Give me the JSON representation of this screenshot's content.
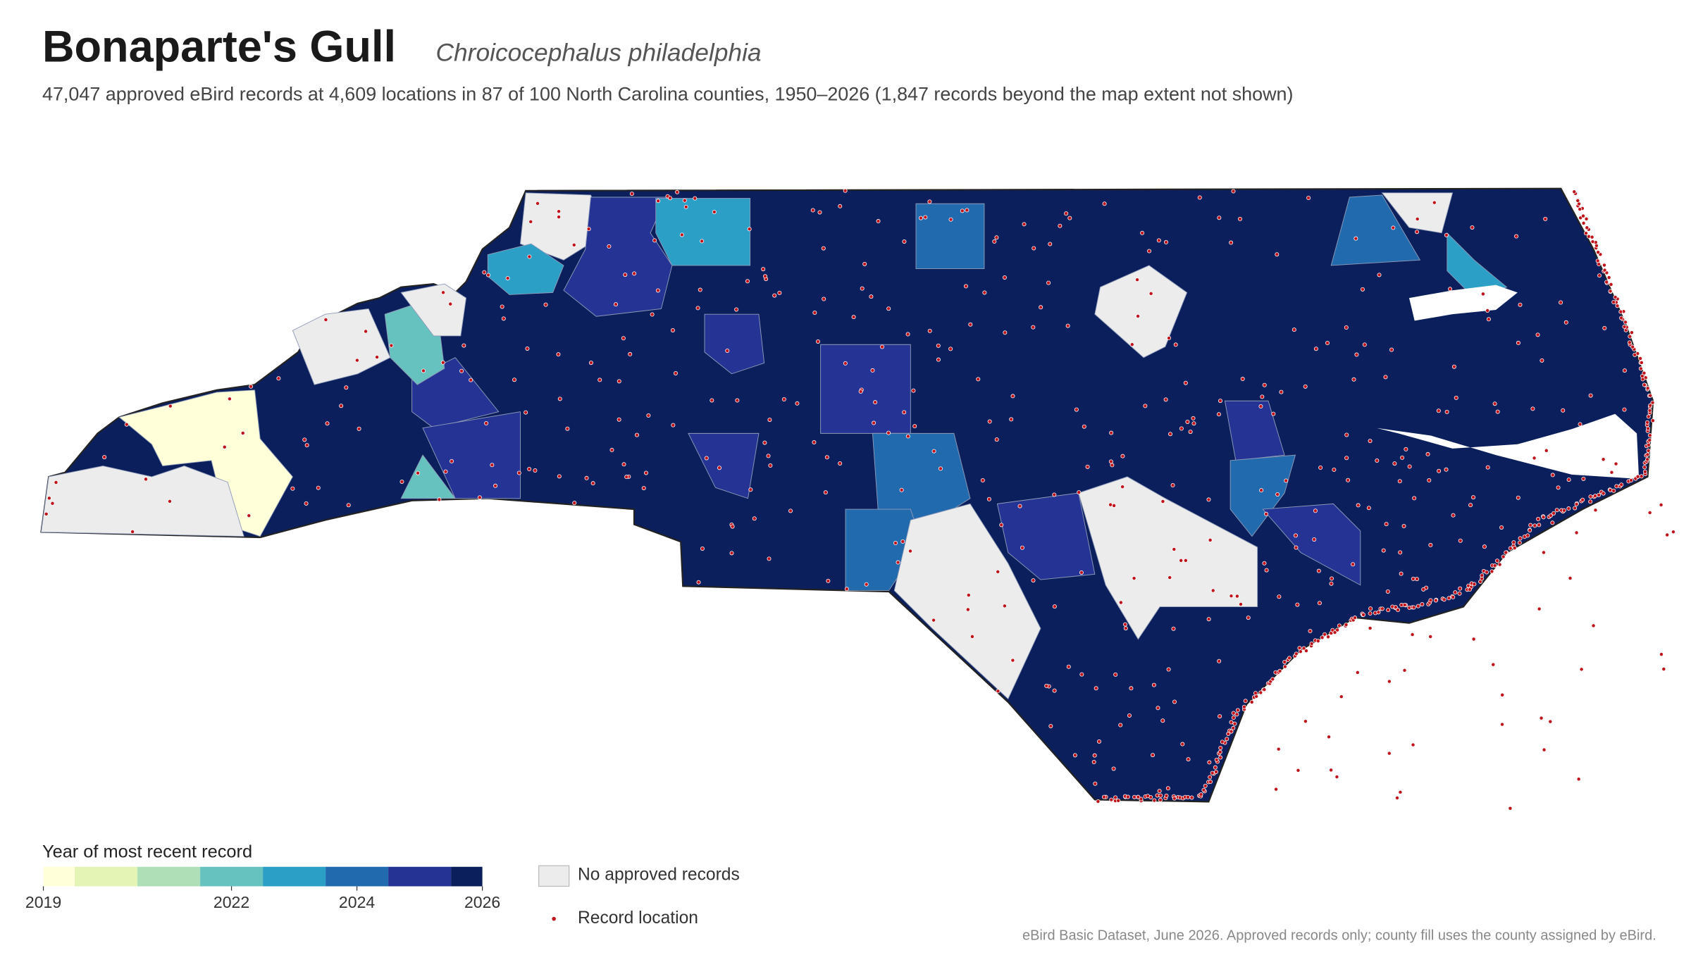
{
  "title": "Bonaparte's Gull",
  "subtitle": "Chroicocephalus philadelphia",
  "description": "47,047 approved eBird records at 4,609 locations in 87 of 100 North Carolina counties, 1950–2026 (1,847 records beyond the map extent not shown)",
  "legend": {
    "title": "Year of most recent record",
    "range": [
      2019,
      2026
    ],
    "ticks": [
      2019,
      2022,
      2024,
      2026
    ],
    "colors": [
      "#ffffd9",
      "#e3f4b4",
      "#aedfb6",
      "#66c2be",
      "#2c9fc6",
      "#226aae",
      "#253494",
      "#0b1f5c"
    ],
    "no_data": {
      "label": "No approved records",
      "color": "#ececec"
    },
    "points": {
      "label": "Record location",
      "color": "#c0141c"
    }
  },
  "source": "eBird Basic Dataset, June 2026. Approved records only; county fill uses the county assigned by eBird."
}
